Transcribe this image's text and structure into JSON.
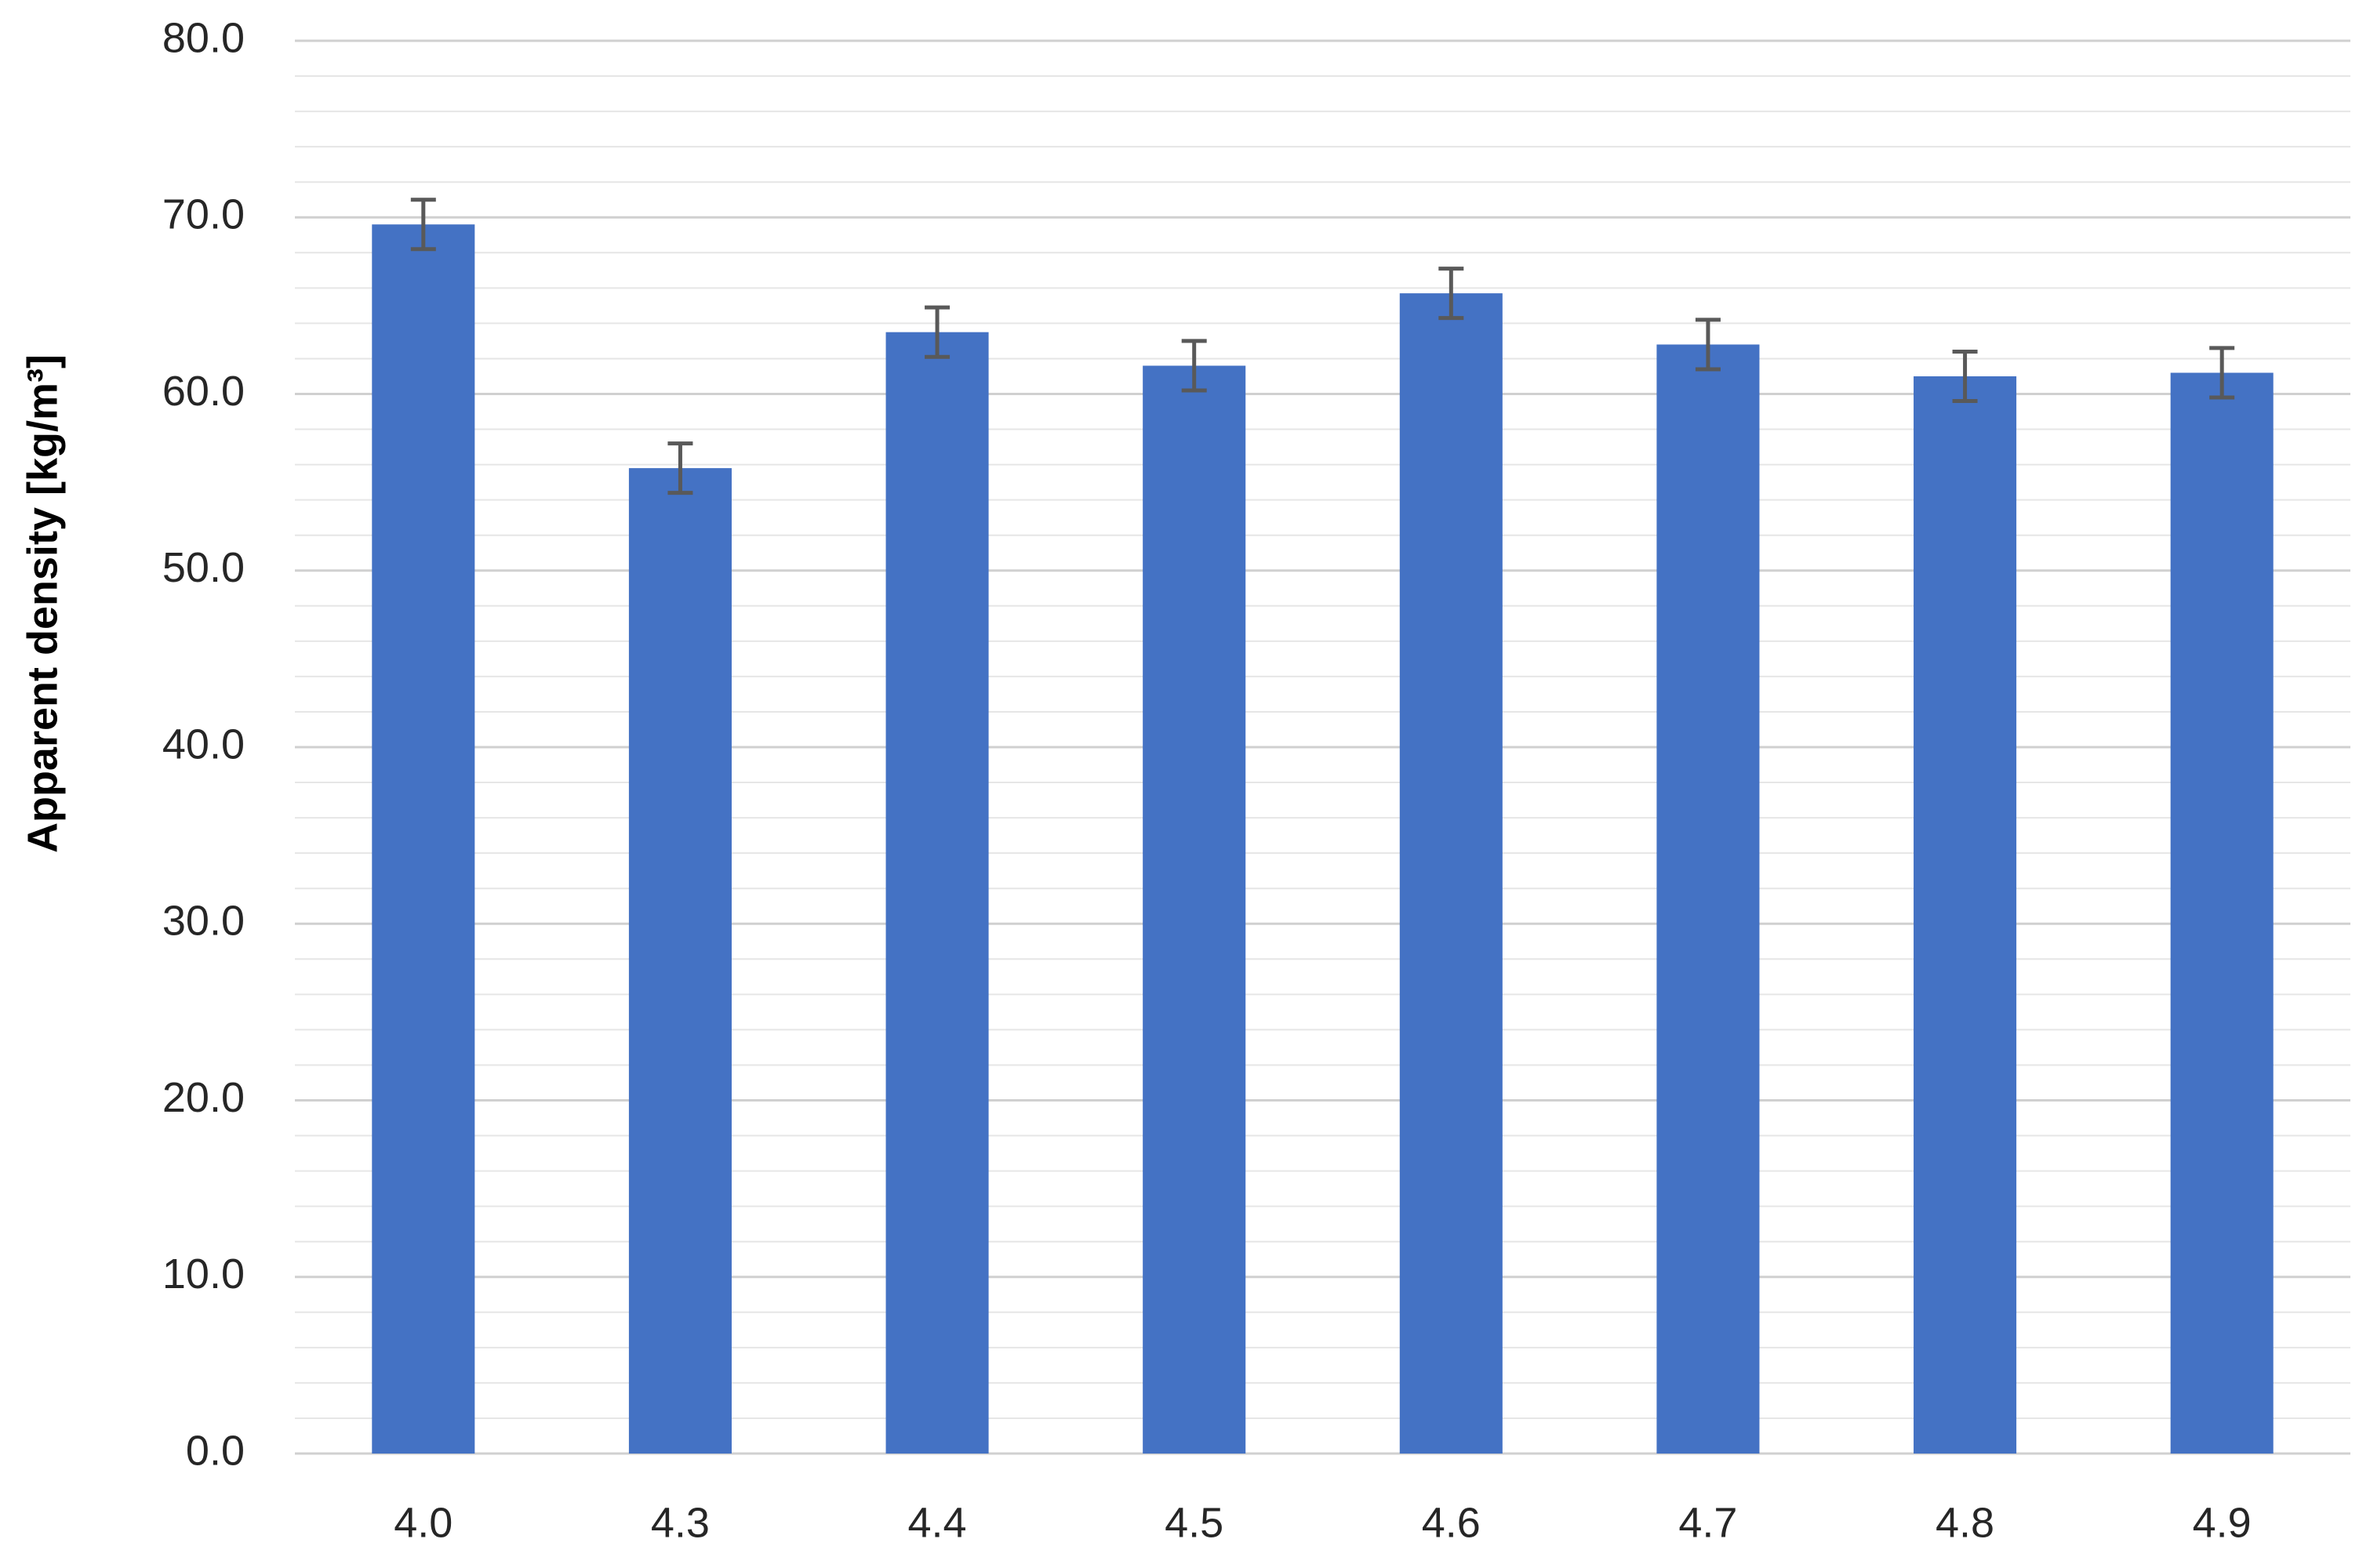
{
  "chart_data": {
    "type": "bar",
    "y_label": "Apparent density [kg/m³]",
    "categories": [
      "4.0",
      "4.3",
      "4.4",
      "4.5",
      "4.6",
      "4.7",
      "4.8",
      "4.9"
    ],
    "values": [
      69.6,
      55.8,
      63.5,
      61.6,
      65.7,
      62.8,
      61.0,
      61.2
    ],
    "errors": [
      1.4,
      1.4,
      1.4,
      1.4,
      1.4,
      1.4,
      1.4,
      1.4
    ],
    "color": "#4472c4",
    "error_color": "#595959",
    "ylim": [
      0,
      80
    ],
    "yticks": [
      {
        "value": 0,
        "label": "0.0"
      },
      {
        "value": 10,
        "label": "10.0"
      },
      {
        "value": 20,
        "label": "20.0"
      },
      {
        "value": 30,
        "label": "30.0"
      },
      {
        "value": 40,
        "label": "40.0"
      },
      {
        "value": 50,
        "label": "50.0"
      },
      {
        "value": 60,
        "label": "60.0"
      },
      {
        "value": 70,
        "label": "70.0"
      },
      {
        "value": 80,
        "label": "80.0"
      }
    ],
    "grid": true
  }
}
